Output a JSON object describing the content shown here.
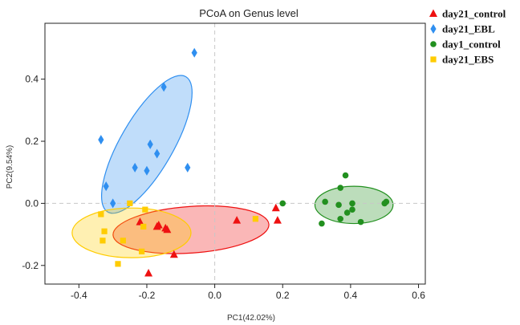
{
  "chart_data": {
    "type": "scatter",
    "title": "PCoA on Genus level",
    "xlabel": "PC1(42.02%)",
    "ylabel": "PC2(9.54%)",
    "xlim": [
      -0.5,
      0.62
    ],
    "ylim": [
      -0.26,
      0.58
    ],
    "xticks": [
      -0.4,
      -0.2,
      0.0,
      0.2,
      0.4,
      0.6
    ],
    "xtick_labels": [
      "-0.4",
      "-0.2",
      "0.0",
      "0.2",
      "0.4",
      "0.6"
    ],
    "yticks": [
      -0.2,
      0.0,
      0.2,
      0.4
    ],
    "ytick_labels": [
      "-0.2",
      "0.0",
      "0.2",
      "0.4"
    ],
    "grid": false,
    "zero_lines": true,
    "legend_position": "outside-top-right",
    "series": [
      {
        "name": "day21_control",
        "color": "#ee1111",
        "marker": "triangle",
        "points": [
          [
            -0.22,
            -0.06
          ],
          [
            -0.17,
            -0.075
          ],
          [
            -0.165,
            -0.07
          ],
          [
            -0.145,
            -0.08
          ],
          [
            -0.14,
            -0.085
          ],
          [
            -0.12,
            -0.165
          ],
          [
            -0.195,
            -0.225
          ],
          [
            0.065,
            -0.055
          ],
          [
            0.18,
            -0.015
          ],
          [
            0.185,
            -0.055
          ]
        ],
        "ellipse": {
          "cx": -0.07,
          "cy": -0.085,
          "rx": 0.23,
          "ry": 0.075,
          "angle": -4
        }
      },
      {
        "name": "day21_EBL",
        "color": "#2f8ff0",
        "marker": "diamond",
        "points": [
          [
            -0.06,
            0.485
          ],
          [
            -0.15,
            0.375
          ],
          [
            -0.335,
            0.205
          ],
          [
            -0.19,
            0.19
          ],
          [
            -0.17,
            0.16
          ],
          [
            -0.235,
            0.115
          ],
          [
            -0.2,
            0.105
          ],
          [
            -0.08,
            0.115
          ],
          [
            -0.32,
            0.055
          ],
          [
            -0.3,
            0.0
          ]
        ],
        "ellipse": {
          "cx": -0.2,
          "cy": 0.19,
          "rx": 0.23,
          "ry": 0.085,
          "angle": -60
        }
      },
      {
        "name": "day1_control",
        "color": "#22901f",
        "marker": "circle",
        "points": [
          [
            0.385,
            0.09
          ],
          [
            0.37,
            0.05
          ],
          [
            0.2,
            0.0
          ],
          [
            0.325,
            0.005
          ],
          [
            0.365,
            -0.005
          ],
          [
            0.405,
            0.0
          ],
          [
            0.505,
            0.005
          ],
          [
            0.5,
            0.0
          ],
          [
            0.39,
            -0.03
          ],
          [
            0.405,
            -0.02
          ],
          [
            0.37,
            -0.05
          ],
          [
            0.43,
            -0.06
          ],
          [
            0.315,
            -0.065
          ]
        ],
        "ellipse": {
          "cx": 0.41,
          "cy": -0.005,
          "rx": 0.115,
          "ry": 0.06,
          "angle": 0
        }
      },
      {
        "name": "day21_EBS",
        "color": "#ffcc00",
        "marker": "square",
        "points": [
          [
            -0.25,
            0.0
          ],
          [
            -0.335,
            -0.035
          ],
          [
            -0.205,
            -0.02
          ],
          [
            -0.325,
            -0.09
          ],
          [
            -0.21,
            -0.075
          ],
          [
            -0.33,
            -0.12
          ],
          [
            -0.27,
            -0.12
          ],
          [
            -0.215,
            -0.155
          ],
          [
            -0.285,
            -0.195
          ],
          [
            0.12,
            -0.05
          ]
        ],
        "ellipse": {
          "cx": -0.245,
          "cy": -0.095,
          "rx": 0.175,
          "ry": 0.08,
          "angle": 0
        }
      }
    ]
  }
}
